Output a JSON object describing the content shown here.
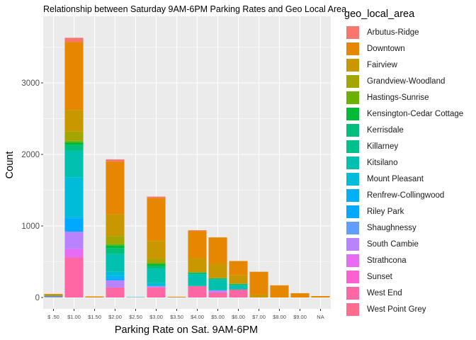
{
  "chart_data": {
    "type": "bar",
    "stacked": true,
    "title": "Relationship between Saturday 9AM-6PM Parking Rates and Geo Local Area",
    "xlabel": "Parking Rate on Sat. 9AM-6PM",
    "ylabel": "Count",
    "ylim": [
      0,
      3900
    ],
    "yticks": [
      0,
      1000,
      2000,
      3000
    ],
    "grid": true,
    "legend_title": "geo_local_area",
    "legend_position": "right",
    "categories": [
      "$ .50",
      "$1.00",
      "$1.50",
      "$2.00",
      "$2.50",
      "$3.00",
      "$3.50",
      "$4.00",
      "$5.00",
      "$6.00",
      "$7.00",
      "$8.00",
      "$9.00",
      "NA"
    ],
    "series": [
      {
        "name": "Arbutus-Ridge",
        "color": "#F8766D",
        "values": [
          0,
          60,
          0,
          30,
          0,
          20,
          0,
          10,
          0,
          0,
          0,
          0,
          0,
          0
        ]
      },
      {
        "name": "Downtown",
        "color": "#E58700",
        "values": [
          20,
          950,
          15,
          740,
          0,
          600,
          10,
          380,
          370,
          200,
          320,
          170,
          60,
          20
        ]
      },
      {
        "name": "Fairview",
        "color": "#C99800",
        "values": [
          5,
          300,
          0,
          300,
          0,
          250,
          0,
          200,
          200,
          120,
          40,
          0,
          0,
          0
        ]
      },
      {
        "name": "Grandview-Woodland",
        "color": "#A3A500",
        "values": [
          0,
          130,
          0,
          110,
          0,
          60,
          0,
          0,
          0,
          0,
          0,
          0,
          0,
          0
        ]
      },
      {
        "name": "Hastings-Sunrise",
        "color": "#6BB100",
        "values": [
          0,
          20,
          0,
          20,
          0,
          10,
          0,
          0,
          0,
          0,
          0,
          0,
          0,
          0
        ]
      },
      {
        "name": "Kensington-Cedar Cottage",
        "color": "#00BA38",
        "values": [
          0,
          40,
          0,
          40,
          0,
          30,
          0,
          0,
          0,
          0,
          0,
          0,
          0,
          0
        ]
      },
      {
        "name": "Kerrisdale",
        "color": "#00BF7D",
        "values": [
          0,
          80,
          0,
          80,
          0,
          40,
          0,
          30,
          20,
          20,
          0,
          0,
          0,
          0
        ]
      },
      {
        "name": "Killarney",
        "color": "#00C08B",
        "values": [
          0,
          0,
          0,
          0,
          0,
          0,
          0,
          0,
          0,
          0,
          0,
          0,
          0,
          0
        ]
      },
      {
        "name": "Kitsilano",
        "color": "#00C0AF",
        "values": [
          10,
          370,
          0,
          250,
          0,
          200,
          0,
          160,
          150,
          60,
          0,
          0,
          0,
          0
        ]
      },
      {
        "name": "Mount Pleasant",
        "color": "#00BCD8",
        "values": [
          5,
          560,
          0,
          60,
          5,
          40,
          0,
          0,
          0,
          0,
          0,
          0,
          0,
          0
        ]
      },
      {
        "name": "Renfrew-Collingwood",
        "color": "#00B0F6",
        "values": [
          0,
          20,
          0,
          30,
          0,
          0,
          0,
          0,
          0,
          0,
          0,
          0,
          0,
          0
        ]
      },
      {
        "name": "Riley Park",
        "color": "#00A9FF",
        "values": [
          0,
          180,
          0,
          30,
          0,
          0,
          0,
          0,
          0,
          0,
          0,
          0,
          0,
          0
        ]
      },
      {
        "name": "Shaughnessy",
        "color": "#619CFF",
        "values": [
          0,
          0,
          0,
          0,
          0,
          0,
          0,
          0,
          0,
          0,
          0,
          0,
          0,
          0
        ]
      },
      {
        "name": "South Cambie",
        "color": "#B983FF",
        "values": [
          0,
          240,
          0,
          100,
          0,
          20,
          0,
          0,
          30,
          0,
          0,
          0,
          0,
          0
        ]
      },
      {
        "name": "Strathcona",
        "color": "#E76BF3",
        "values": [
          0,
          120,
          0,
          0,
          0,
          0,
          0,
          0,
          0,
          0,
          0,
          0,
          0,
          0
        ]
      },
      {
        "name": "Sunset",
        "color": "#FD61D1",
        "values": [
          0,
          0,
          0,
          0,
          0,
          0,
          0,
          0,
          0,
          0,
          0,
          0,
          0,
          0
        ]
      },
      {
        "name": "West End",
        "color": "#FF67A4",
        "values": [
          10,
          560,
          0,
          140,
          0,
          140,
          0,
          160,
          70,
          110,
          0,
          0,
          0,
          0
        ]
      },
      {
        "name": "West Point Grey",
        "color": "#FF6C90",
        "values": [
          0,
          0,
          0,
          0,
          0,
          0,
          0,
          0,
          0,
          0,
          0,
          0,
          0,
          0
        ]
      }
    ]
  }
}
